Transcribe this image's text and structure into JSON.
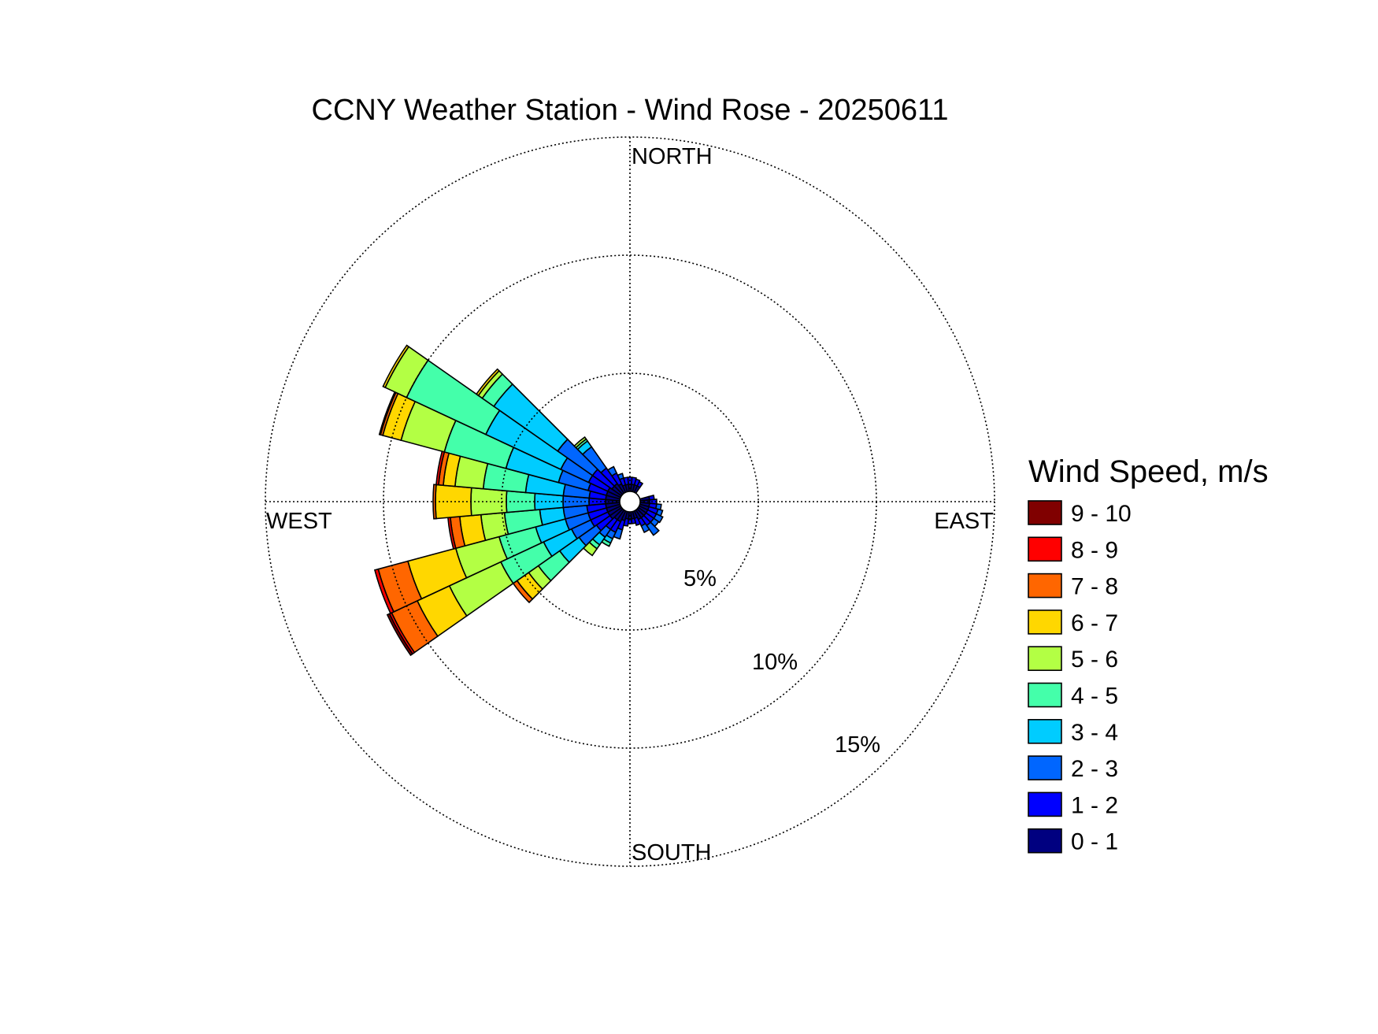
{
  "chart_data": {
    "type": "wind-rose",
    "title": "CCNY Weather Station - Wind Rose - 20250611",
    "direction_labels": {
      "north": "NORTH",
      "south": "SOUTH",
      "east": "EAST",
      "west": "WEST"
    },
    "ring_values": [
      5,
      10,
      15
    ],
    "ring_labels": [
      "5%",
      "10%",
      "15%"
    ],
    "r_max": 15,
    "sector_width_deg": 10,
    "legend": {
      "title": "Wind Speed, m/s",
      "placement": "right",
      "bins": [
        {
          "label": "0 - 1",
          "color": "#000080"
        },
        {
          "label": "1 - 2",
          "color": "#0000FF"
        },
        {
          "label": "2 - 3",
          "color": "#0066FF"
        },
        {
          "label": "3 - 4",
          "color": "#00CCFF"
        },
        {
          "label": "4 - 5",
          "color": "#44FFAA"
        },
        {
          "label": "5 - 6",
          "color": "#B3FF44"
        },
        {
          "label": "6 - 7",
          "color": "#FFD700"
        },
        {
          "label": "7 - 8",
          "color": "#FF6600"
        },
        {
          "label": "8 - 9",
          "color": "#FF0000"
        },
        {
          "label": "9 - 10",
          "color": "#800000"
        }
      ]
    },
    "sectors": [
      {
        "direction_deg": 0,
        "cumulative": [
          0.3,
          0.6
        ]
      },
      {
        "direction_deg": 10,
        "cumulative": [
          0.3,
          0.6
        ]
      },
      {
        "direction_deg": 20,
        "cumulative": [
          0.3,
          0.55
        ]
      },
      {
        "direction_deg": 30,
        "cumulative": [
          0.3,
          0.5
        ]
      },
      {
        "direction_deg": 80,
        "cumulative": [
          0.4,
          0.6
        ]
      },
      {
        "direction_deg": 90,
        "cumulative": [
          0.4,
          0.7
        ]
      },
      {
        "direction_deg": 100,
        "cumulative": [
          0.4,
          0.7,
          0.9
        ]
      },
      {
        "direction_deg": 110,
        "cumulative": [
          0.4,
          0.8,
          1.0
        ]
      },
      {
        "direction_deg": 120,
        "cumulative": [
          0.4,
          0.8,
          1.1
        ]
      },
      {
        "direction_deg": 130,
        "cumulative": [
          0.4,
          0.8,
          1.05
        ]
      },
      {
        "direction_deg": 140,
        "cumulative": [
          0.4,
          0.8,
          1.3
        ]
      },
      {
        "direction_deg": 150,
        "cumulative": [
          0.4,
          0.7,
          1.0
        ]
      },
      {
        "direction_deg": 160,
        "cumulative": [
          0.3,
          0.6
        ]
      },
      {
        "direction_deg": 170,
        "cumulative": [
          0.3,
          0.5
        ]
      },
      {
        "direction_deg": 180,
        "cumulative": [
          0.3,
          0.5
        ]
      },
      {
        "direction_deg": 190,
        "cumulative": [
          0.3,
          0.6
        ]
      },
      {
        "direction_deg": 200,
        "cumulative": [
          0.4,
          0.8,
          1.2
        ]
      },
      {
        "direction_deg": 210,
        "cumulative": [
          0.5,
          1.0,
          1.3,
          1.5,
          1.65
        ]
      },
      {
        "direction_deg": 220,
        "cumulative": [
          0.5,
          1.0,
          1.4,
          1.8,
          2.0,
          2.35
        ]
      },
      {
        "direction_deg": 230,
        "cumulative": [
          0.6,
          1.3,
          2.2,
          3.2,
          4.3,
          4.8,
          5.4,
          5.6
        ]
      },
      {
        "direction_deg": 240,
        "cumulative": [
          0.6,
          1.4,
          2.3,
          3.6,
          5.6,
          8.0,
          9.5,
          10.7,
          10.8,
          10.9
        ]
      },
      {
        "direction_deg": 250,
        "cumulative": [
          0.6,
          1.4,
          2.4,
          3.7,
          5.3,
          7.2,
          9.3,
          10.6,
          10.75
        ]
      },
      {
        "direction_deg": 260,
        "cumulative": [
          0.6,
          1.4,
          2.4,
          3.4,
          4.9,
          5.9,
          6.8,
          7.2,
          7.3
        ]
      },
      {
        "direction_deg": 270,
        "cumulative": [
          0.6,
          1.3,
          2.4,
          3.6,
          4.8,
          6.3,
          7.8,
          7.9
        ]
      },
      {
        "direction_deg": 280,
        "cumulative": [
          0.6,
          1.3,
          2.4,
          4.0,
          5.8,
          7.0,
          7.5,
          7.7,
          7.8
        ]
      },
      {
        "direction_deg": 290,
        "cumulative": [
          0.6,
          1.4,
          2.7,
          5.0,
          7.7,
          9.6,
          10.4,
          10.5,
          10.55
        ]
      },
      {
        "direction_deg": 300,
        "cumulative": [
          0.6,
          1.5,
          2.8,
          6.3,
          10.0,
          11.0,
          11.1
        ]
      },
      {
        "direction_deg": 310,
        "cumulative": [
          0.5,
          1.5,
          3.3,
          6.6,
          7.2,
          7.4,
          7.5
        ]
      },
      {
        "direction_deg": 320,
        "cumulative": [
          0.5,
          1.3,
          2.4,
          2.7,
          2.8,
          2.9
        ]
      },
      {
        "direction_deg": 330,
        "cumulative": [
          0.4,
          0.9,
          1.2
        ]
      },
      {
        "direction_deg": 340,
        "cumulative": [
          0.3,
          0.6,
          0.8
        ]
      },
      {
        "direction_deg": 350,
        "cumulative": [
          0.3,
          0.6
        ]
      }
    ]
  }
}
